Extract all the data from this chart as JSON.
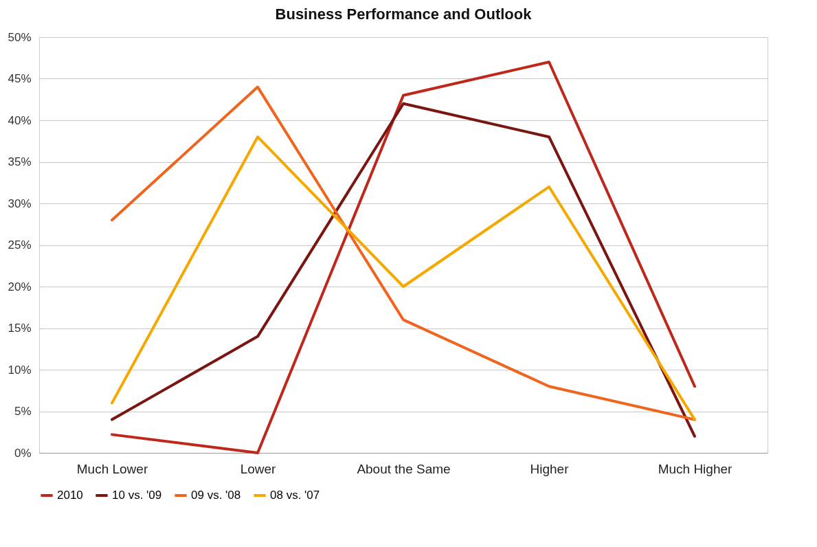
{
  "chart_data": {
    "type": "line",
    "title": "Business Performance and Outlook",
    "categories": [
      "Much Lower",
      "Lower",
      "About the Same",
      "Higher",
      "Much Higher"
    ],
    "series": [
      {
        "name": "2010",
        "color": "#c0271c",
        "values": [
          2.2,
          0,
          43,
          47,
          8
        ]
      },
      {
        "name": "10 vs. '09",
        "color": "#7b1512",
        "values": [
          4,
          14,
          42,
          38,
          2
        ]
      },
      {
        "name": "09 vs. '08",
        "color": "#f0641e",
        "values": [
          28,
          44,
          16,
          8,
          4
        ]
      },
      {
        "name": "08 vs. '07",
        "color": "#f5a800",
        "values": [
          6,
          38,
          20,
          32,
          4
        ]
      }
    ],
    "ylim": [
      0,
      50
    ],
    "yticks": [
      {
        "value": 0,
        "label": "0%"
      },
      {
        "value": 5,
        "label": "5%"
      },
      {
        "value": 10,
        "label": "10%"
      },
      {
        "value": 15,
        "label": "15%"
      },
      {
        "value": 20,
        "label": "20%"
      },
      {
        "value": 25,
        "label": "25%"
      },
      {
        "value": 30,
        "label": "30%"
      },
      {
        "value": 35,
        "label": "35%"
      },
      {
        "value": 40,
        "label": "40%"
      },
      {
        "value": 45,
        "label": "45%"
      },
      {
        "value": 50,
        "label": "50%"
      }
    ],
    "grid": "y",
    "legend": "bottom",
    "marker": "none",
    "line_style": "solid"
  }
}
